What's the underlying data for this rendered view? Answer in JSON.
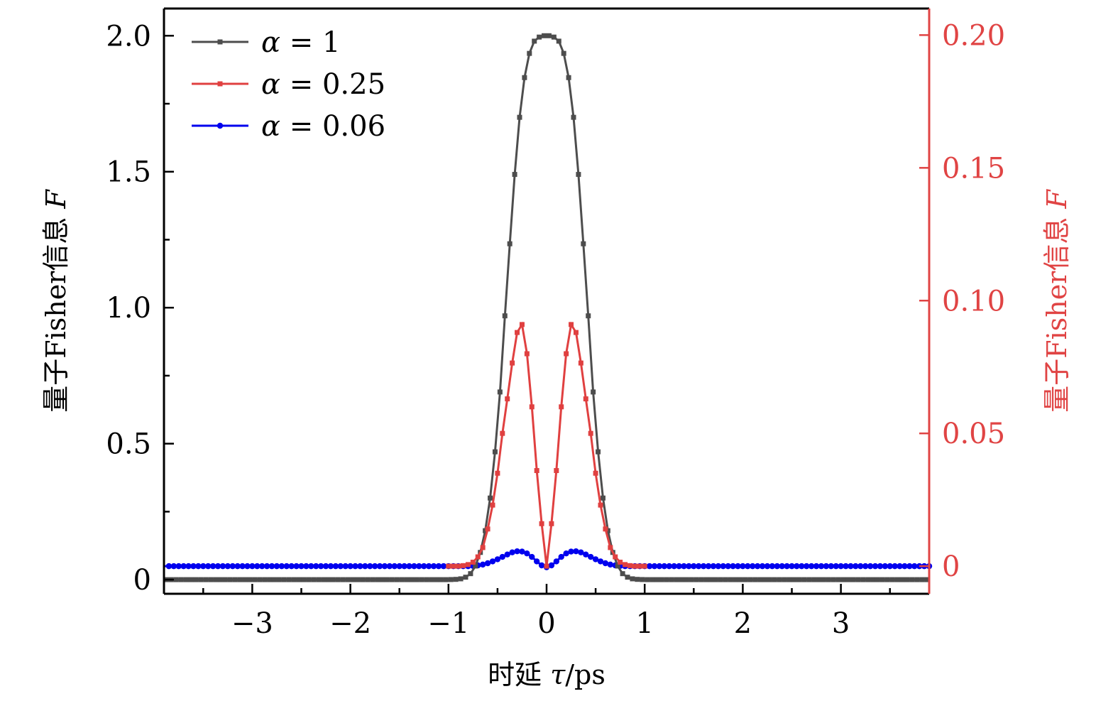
{
  "chart_data": {
    "type": "line",
    "title": "",
    "xlabel": "时延 τ/ps",
    "xlabel_parts": {
      "text": "时延 ",
      "var": "τ",
      "unit": "/ps"
    },
    "ylabel_left": "量子Fisher信息 F",
    "ylabel_left_parts": {
      "text": "量子Fisher信息 ",
      "var": "F"
    },
    "ylabel_right": "量子Fisher信息 F",
    "ylabel_right_parts": {
      "text": "量子Fisher信息 ",
      "var": "F"
    },
    "xlim": [
      -3.9,
      3.9
    ],
    "ylim_left": [
      -0.052,
      2.1
    ],
    "ylim_right": [
      -0.0104,
      0.21
    ],
    "x_ticks": [
      -3,
      -2,
      -1,
      0,
      1,
      2,
      3
    ],
    "x_tick_labels": [
      "−3",
      "−2",
      "−1",
      "0",
      "1",
      "2",
      "3"
    ],
    "x_minor_ticks": [
      -3.5,
      -2.5,
      -1.5,
      -0.5,
      0.5,
      1.5,
      2.5,
      3.5
    ],
    "y_left_ticks": [
      0,
      0.5,
      1.0,
      1.5,
      2.0
    ],
    "y_left_tick_labels": [
      "0",
      "0.5",
      "1.0",
      "1.5",
      "2.0"
    ],
    "y_left_minor_ticks": [
      0.25,
      0.75,
      1.25,
      1.75
    ],
    "y_right_ticks": [
      0,
      0.05,
      0.1,
      0.15,
      0.2
    ],
    "y_right_tick_labels": [
      "0",
      "0.05",
      "0.10",
      "0.15",
      "0.20"
    ],
    "grid": false,
    "legend_position": "top-left",
    "right_axis_color": "#e04444",
    "series": [
      {
        "name": "α = 1",
        "legend_var": "α",
        "legend_value": "= 1",
        "axis": "left",
        "color": "#4d4d4d",
        "marker": "square",
        "symmetric": true,
        "x_step": 0.05,
        "x_offset": 0.025,
        "profile_x": [
          0.025,
          0.075,
          0.125,
          0.175,
          0.225,
          0.275,
          0.325,
          0.375,
          0.425,
          0.475,
          0.525,
          0.575,
          0.625,
          0.675,
          0.725,
          0.775,
          0.825,
          0.875,
          0.925,
          1.0
        ],
        "profile_y": [
          2.0,
          1.995,
          1.98,
          1.935,
          1.846,
          1.7,
          1.49,
          1.235,
          0.97,
          0.69,
          0.47,
          0.3,
          0.18,
          0.1,
          0.05,
          0.022,
          0.009,
          0.003,
          0.001,
          0
        ],
        "baseline": 0
      },
      {
        "name": "α = 0.25",
        "legend_var": "α",
        "legend_value": "= 0.25",
        "axis": "right",
        "color": "#e04040",
        "marker": "square",
        "symmetric": true,
        "x_step": 0.05,
        "x_offset": 0,
        "x_extent": 1.0,
        "profile_x": [
          0,
          0.05,
          0.1,
          0.15,
          0.2,
          0.25,
          0.27,
          0.3,
          0.35,
          0.4,
          0.45,
          0.5,
          0.55,
          0.6,
          0.65,
          0.7,
          0.75,
          0.8,
          0.85,
          0.9
        ],
        "profile_y": [
          0,
          0.016,
          0.036,
          0.06,
          0.08,
          0.091,
          0.0922,
          0.088,
          0.0765,
          0.063,
          0.05,
          0.035,
          0.023,
          0.014,
          0.007,
          0.0035,
          0.0015,
          0.0006,
          0.0002,
          0
        ],
        "baseline": 0
      },
      {
        "name": "α = 0.06",
        "legend_var": "α",
        "legend_value": "= 0.06",
        "axis": "right",
        "color": "#0000ee",
        "marker": "circle",
        "symmetric": true,
        "x_step": 0.05,
        "x_offset": 0,
        "profile_x": [
          0,
          0.05,
          0.1,
          0.15,
          0.2,
          0.25,
          0.3,
          0.35,
          0.4,
          0.45,
          0.5,
          0.55,
          0.6,
          0.65,
          0.7,
          0.75,
          0.8
        ],
        "profile_y": [
          -0.0004,
          0.0003,
          0.0018,
          0.0035,
          0.0048,
          0.0055,
          0.0056,
          0.0052,
          0.0044,
          0.0035,
          0.0026,
          0.0018,
          0.0011,
          0.0006,
          0.0003,
          0.0001,
          0
        ],
        "baseline": 0
      }
    ]
  }
}
